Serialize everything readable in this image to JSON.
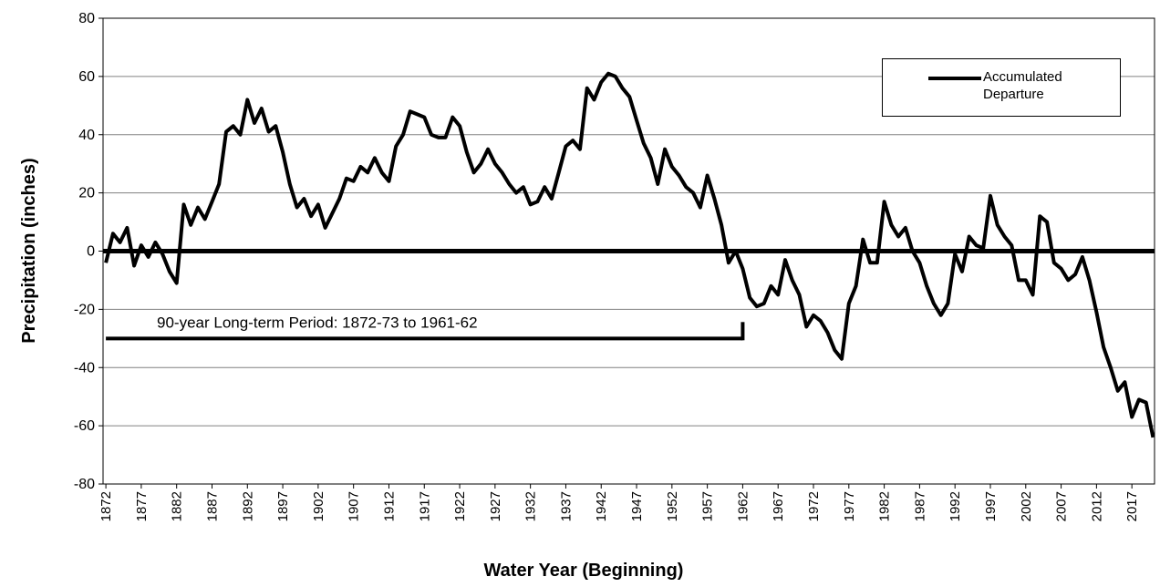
{
  "chart_data": {
    "type": "line",
    "x_label": "Water Year (Beginning)",
    "y_label": "Precipitation (inches)",
    "x": [
      1872,
      1873,
      1874,
      1875,
      1876,
      1877,
      1878,
      1879,
      1880,
      1881,
      1882,
      1883,
      1884,
      1885,
      1886,
      1887,
      1888,
      1889,
      1890,
      1891,
      1892,
      1893,
      1894,
      1895,
      1896,
      1897,
      1898,
      1899,
      1900,
      1901,
      1902,
      1903,
      1904,
      1905,
      1906,
      1907,
      1908,
      1909,
      1910,
      1911,
      1912,
      1913,
      1914,
      1915,
      1916,
      1917,
      1918,
      1919,
      1920,
      1921,
      1922,
      1923,
      1924,
      1925,
      1926,
      1927,
      1928,
      1929,
      1930,
      1931,
      1932,
      1933,
      1934,
      1935,
      1936,
      1937,
      1938,
      1939,
      1940,
      1941,
      1942,
      1943,
      1944,
      1945,
      1946,
      1947,
      1948,
      1949,
      1950,
      1951,
      1952,
      1953,
      1954,
      1955,
      1956,
      1957,
      1958,
      1959,
      1960,
      1961,
      1962,
      1963,
      1964,
      1965,
      1966,
      1967,
      1968,
      1969,
      1970,
      1971,
      1972,
      1973,
      1974,
      1975,
      1976,
      1977,
      1978,
      1979,
      1980,
      1981,
      1982,
      1983,
      1984,
      1985,
      1986,
      1987,
      1988,
      1989,
      1990,
      1991,
      1992,
      1993,
      1994,
      1995,
      1996,
      1997,
      1998,
      1999,
      2000,
      2001,
      2002,
      2003,
      2004,
      2005,
      2006,
      2007,
      2008,
      2009,
      2010,
      2011,
      2012,
      2013,
      2014,
      2015,
      2016,
      2017,
      2018,
      2019,
      2020
    ],
    "series": [
      {
        "name": "Accumulated Departure",
        "color": "#000000",
        "values": [
          -4,
          6,
          3,
          8,
          -5,
          2,
          -2,
          3,
          -1,
          -7,
          -11,
          16,
          9,
          15,
          11,
          17,
          23,
          41,
          43,
          40,
          52,
          44,
          49,
          41,
          43,
          34,
          23,
          15,
          18,
          12,
          16,
          8,
          13,
          18,
          25,
          24,
          29,
          27,
          32,
          27,
          24,
          36,
          40,
          48,
          47,
          46,
          40,
          39,
          39,
          46,
          43,
          34,
          27,
          30,
          35,
          30,
          27,
          23,
          20,
          22,
          16,
          17,
          22,
          18,
          27,
          36,
          38,
          35,
          56,
          52,
          58,
          61,
          60,
          56,
          53,
          45,
          37,
          32,
          23,
          35,
          29,
          26,
          22,
          20,
          15,
          26,
          18,
          9,
          -4,
          0,
          -6,
          -16,
          -19,
          -18,
          -12,
          -15,
          -3,
          -10,
          -15,
          -26,
          -22,
          -24,
          -28,
          -34,
          -37,
          -18,
          -12,
          4,
          -4,
          -4,
          17,
          9,
          5,
          8,
          0,
          -4,
          -12,
          -18,
          -22,
          -18,
          -1,
          -7,
          5,
          2,
          1,
          19,
          9,
          5,
          2,
          -10,
          -10,
          -15,
          12,
          10,
          -4,
          -6,
          -10,
          -8,
          -2,
          -10,
          -21,
          -33,
          -40,
          -48,
          -45,
          -57,
          -51,
          -52,
          -64
        ]
      }
    ],
    "reference_line": 0,
    "period": {
      "label": "90-year Long-term Period: 1872-73 to 1961-62",
      "start": 1872,
      "end": 1962,
      "y": -30
    },
    "xlim": [
      1871.6,
      2020.2
    ],
    "xticks": [
      1872,
      1877,
      1882,
      1887,
      1892,
      1897,
      1902,
      1907,
      1912,
      1917,
      1922,
      1927,
      1932,
      1937,
      1942,
      1947,
      1952,
      1957,
      1962,
      1967,
      1972,
      1977,
      1982,
      1987,
      1992,
      1997,
      2002,
      2007,
      2012,
      2017
    ],
    "ylim": [
      -80,
      80
    ],
    "yticks": [
      -80,
      -60,
      -40,
      -20,
      0,
      20,
      40,
      60,
      80
    ],
    "grid": true
  }
}
